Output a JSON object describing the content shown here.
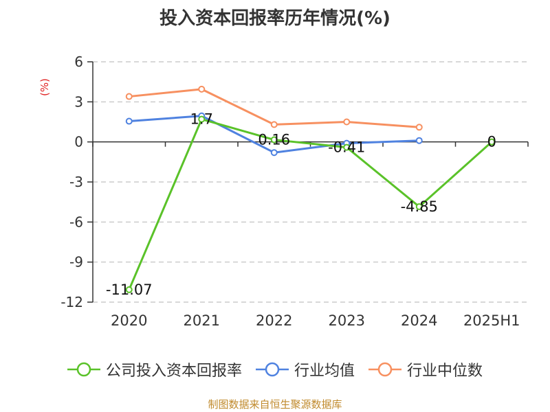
{
  "title": "投入资本回报率历年情况(%)",
  "unit_label": "(%)",
  "source": "制图数据来自恒生聚源数据库",
  "colors": {
    "company": "#5ac229",
    "industry_avg": "#4f82e0",
    "industry_median": "#f79060",
    "grid": "#cccccc",
    "axis": "#333333",
    "unit": "#e02020"
  },
  "chart_data": {
    "type": "line",
    "title": "投入资本回报率历年情况(%)",
    "ylabel": "(%)",
    "categories": [
      "2020",
      "2021",
      "2022",
      "2023",
      "2024",
      "2025H1"
    ],
    "ylim": [
      -12,
      6
    ],
    "yticks": [
      6,
      3,
      0,
      -3,
      -6,
      -9,
      -12
    ],
    "grid": "horizontal dashed",
    "legend_position": "bottom",
    "series": [
      {
        "name": "公司投入资本回报率",
        "color": "#5ac229",
        "values": [
          -11.07,
          1.7,
          0.16,
          -0.41,
          -4.85,
          0
        ],
        "labels": [
          "-11.07",
          "1.7",
          "0.16",
          "-0.41",
          "-4.85",
          "0"
        ]
      },
      {
        "name": "行业均值",
        "color": "#4f82e0",
        "values": [
          1.55,
          1.95,
          -0.8,
          -0.1,
          0.1,
          null
        ]
      },
      {
        "name": "行业中位数",
        "color": "#f79060",
        "values": [
          3.4,
          3.95,
          1.3,
          1.5,
          1.1,
          null
        ]
      }
    ]
  }
}
